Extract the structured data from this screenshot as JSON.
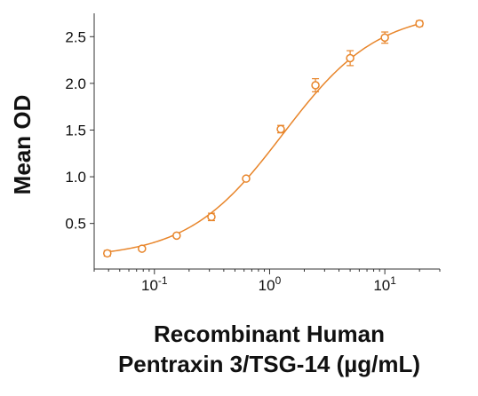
{
  "chart_data": {
    "type": "scatter",
    "title": "",
    "xlabel_lines": [
      "Recombinant Human",
      "Pentraxin 3/TSG-14 (µg/mL)"
    ],
    "ylabel": "Mean OD",
    "x_scale": "log",
    "xlim": [
      0.03,
      30
    ],
    "ylim": [
      0.05,
      2.75
    ],
    "x_ticks": [
      {
        "value": 0.1,
        "base": "10",
        "exp": "-1"
      },
      {
        "value": 1,
        "base": "10",
        "exp": "0"
      },
      {
        "value": 10,
        "base": "10",
        "exp": "1"
      }
    ],
    "y_ticks": [
      {
        "value": 0.5,
        "label": "0.5"
      },
      {
        "value": 1.0,
        "label": "1.0"
      },
      {
        "value": 1.5,
        "label": "1.5"
      },
      {
        "value": 2.0,
        "label": "2.0"
      },
      {
        "value": 2.5,
        "label": "2.5"
      }
    ],
    "grid": false,
    "series": [
      {
        "color": "#e8852a",
        "x": [
          0.039,
          0.078,
          0.156,
          0.3125,
          0.625,
          1.25,
          2.5,
          5,
          10,
          20
        ],
        "y": [
          0.18,
          0.23,
          0.37,
          0.57,
          0.98,
          1.51,
          1.98,
          2.27,
          2.49,
          2.64
        ],
        "err": [
          0.03,
          0.02,
          0.02,
          0.04,
          0.02,
          0.04,
          0.07,
          0.08,
          0.06,
          0.03
        ],
        "fit": {
          "bottom": 0.13,
          "top": 2.78,
          "ec50": 1.3,
          "hill": 1.05
        }
      }
    ]
  }
}
